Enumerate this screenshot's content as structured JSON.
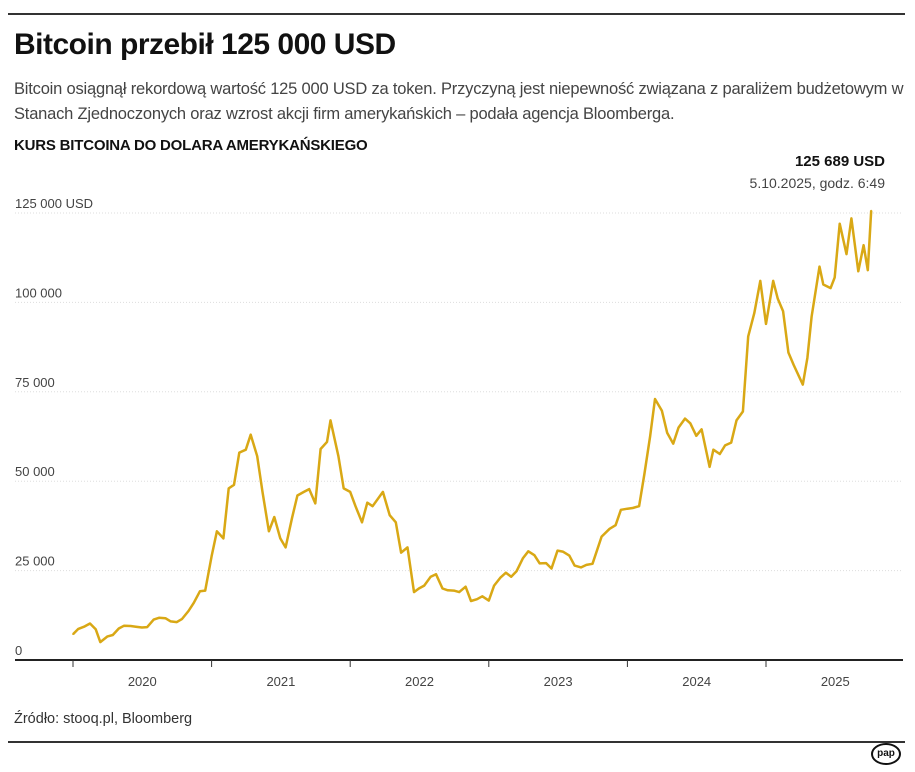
{
  "header": {
    "title": "Bitcoin przebił 125 000 USD",
    "subtitle": "Bitcoin osiągnął rekordową wartość 125 000 USD za token. Przyczyną jest niepewność związana z paraliżem budżetowym w Stanach Zjednoczonych oraz wzrost akcji firm amerykańskich – podała agencja Bloomberga."
  },
  "footer": {
    "source": "Źródło: stooq.pl, Bloomberg",
    "logo": "pap"
  },
  "chart_data": {
    "type": "line",
    "title": "KURS BITCOINA DO DOLARA AMERYKAŃSKIEGO",
    "xlabel": "",
    "ylabel": "",
    "ylim": [
      0,
      125000
    ],
    "xlim": [
      "2020-01-01",
      "2025-12-31"
    ],
    "grid": true,
    "color": "#d9a815",
    "y_ticks": [
      {
        "value": 125000,
        "label": "125 000 USD"
      },
      {
        "value": 100000,
        "label": "100 000"
      },
      {
        "value": 75000,
        "label": "75 000"
      },
      {
        "value": 50000,
        "label": "50 000"
      },
      {
        "value": 25000,
        "label": "25 000"
      },
      {
        "value": 0,
        "label": "0"
      }
    ],
    "x_ticks": [
      "2020",
      "2021",
      "2022",
      "2023",
      "2024",
      "2025"
    ],
    "annotation": {
      "value": "125 689 USD",
      "date": "5.10.2025, godz. 6:49"
    },
    "x": [
      "2020-01-01",
      "2020-01-15",
      "2020-02-01",
      "2020-02-15",
      "2020-03-01",
      "2020-03-13",
      "2020-04-01",
      "2020-04-15",
      "2020-05-01",
      "2020-05-15",
      "2020-06-01",
      "2020-06-15",
      "2020-07-01",
      "2020-07-15",
      "2020-08-01",
      "2020-08-15",
      "2020-09-01",
      "2020-09-15",
      "2020-10-01",
      "2020-10-15",
      "2020-11-01",
      "2020-11-15",
      "2020-12-01",
      "2020-12-15",
      "2021-01-01",
      "2021-01-15",
      "2021-02-01",
      "2021-02-15",
      "2021-03-01",
      "2021-03-15",
      "2021-04-01",
      "2021-04-14",
      "2021-05-01",
      "2021-05-15",
      "2021-06-01",
      "2021-06-15",
      "2021-07-01",
      "2021-07-15",
      "2021-08-01",
      "2021-08-15",
      "2021-09-01",
      "2021-09-15",
      "2021-10-01",
      "2021-10-15",
      "2021-11-01",
      "2021-11-10",
      "2021-12-01",
      "2021-12-15",
      "2022-01-01",
      "2022-01-15",
      "2022-02-01",
      "2022-02-15",
      "2022-03-01",
      "2022-03-28",
      "2022-04-15",
      "2022-05-01",
      "2022-05-15",
      "2022-06-01",
      "2022-06-18",
      "2022-07-01",
      "2022-07-15",
      "2022-08-01",
      "2022-08-15",
      "2022-09-01",
      "2022-09-15",
      "2022-10-01",
      "2022-10-15",
      "2022-11-01",
      "2022-11-15",
      "2022-12-01",
      "2022-12-15",
      "2023-01-01",
      "2023-01-15",
      "2023-02-01",
      "2023-02-15",
      "2023-03-01",
      "2023-03-15",
      "2023-04-01",
      "2023-04-15",
      "2023-05-01",
      "2023-05-15",
      "2023-06-01",
      "2023-06-15",
      "2023-07-01",
      "2023-07-15",
      "2023-08-01",
      "2023-08-15",
      "2023-09-01",
      "2023-09-15",
      "2023-10-01",
      "2023-10-25",
      "2023-11-15",
      "2023-12-01",
      "2023-12-15",
      "2024-01-01",
      "2024-01-15",
      "2024-02-01",
      "2024-02-15",
      "2024-03-01",
      "2024-03-14",
      "2024-04-01",
      "2024-04-15",
      "2024-05-01",
      "2024-05-15",
      "2024-06-01",
      "2024-06-15",
      "2024-07-01",
      "2024-07-15",
      "2024-08-05",
      "2024-08-15",
      "2024-09-01",
      "2024-09-15",
      "2024-10-01",
      "2024-10-15",
      "2024-11-01",
      "2024-11-15",
      "2024-12-01",
      "2024-12-17",
      "2025-01-01",
      "2025-01-20",
      "2025-02-01",
      "2025-02-15",
      "2025-03-01",
      "2025-03-15",
      "2025-04-08",
      "2025-04-20",
      "2025-05-01",
      "2025-05-22",
      "2025-06-01",
      "2025-06-20",
      "2025-07-01",
      "2025-07-14",
      "2025-08-01",
      "2025-08-14",
      "2025-09-01",
      "2025-09-15",
      "2025-09-26",
      "2025-10-05"
    ],
    "y": [
      7200,
      8700,
      9400,
      10200,
      8600,
      5000,
      6600,
      7000,
      8800,
      9600,
      9500,
      9300,
      9100,
      9200,
      11300,
      11800,
      11700,
      10800,
      10600,
      11500,
      13700,
      16000,
      19200,
      19400,
      29000,
      36000,
      34000,
      48000,
      49000,
      58000,
      58800,
      63000,
      57000,
      47000,
      36000,
      40000,
      34000,
      31500,
      39800,
      46000,
      47000,
      47800,
      43800,
      59000,
      61000,
      67000,
      57000,
      48000,
      47000,
      43000,
      38500,
      44000,
      43000,
      47000,
      40500,
      38500,
      30000,
      31500,
      19000,
      20000,
      20800,
      23300,
      24000,
      20000,
      19500,
      19400,
      19000,
      20500,
      16500,
      17000,
      17800,
      16600,
      20800,
      23100,
      24400,
      23300,
      24800,
      28500,
      30400,
      29300,
      27000,
      27100,
      25600,
      30600,
      30300,
      29200,
      26400,
      25900,
      26600,
      26900,
      34500,
      36700,
      37700,
      42000,
      42300,
      42500,
      43000,
      52000,
      62500,
      73000,
      69700,
      63500,
      60500,
      65000,
      67500,
      66200,
      62700,
      64500,
      54000,
      58800,
      57600,
      60000,
      60800,
      67000,
      69500,
      90500,
      97000,
      106000,
      94000,
      106000,
      101000,
      97500,
      86000,
      82500,
      77000,
      84500,
      96000,
      110000,
      105000,
      104000,
      107000,
      122000,
      113500,
      123500,
      108700,
      116000,
      109000,
      125689
    ]
  }
}
